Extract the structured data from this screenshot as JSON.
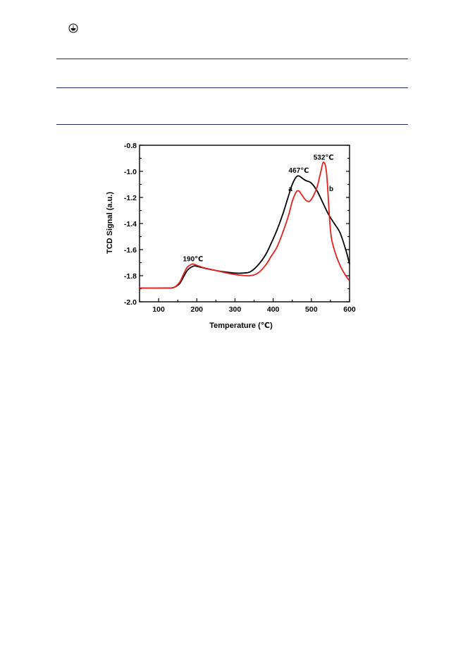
{
  "page": {
    "corner_icon": "circle-bowl-icon"
  },
  "chart_data": {
    "type": "line",
    "xlabel": "Temperature (℃)",
    "ylabel": "TCD Signal (a.u.)",
    "xlim": [
      50,
      600
    ],
    "ylim": [
      -2.0,
      -0.8
    ],
    "xticks": [
      100,
      200,
      300,
      400,
      500,
      600
    ],
    "yticks": [
      -2.0,
      -1.8,
      -1.6,
      -1.4,
      -1.2,
      -1.0,
      -0.8
    ],
    "grid": false,
    "legend": "none",
    "series": [
      {
        "name": "a",
        "color": "#000000",
        "x": [
          50,
          120,
          140,
          155,
          165,
          175,
          185,
          195,
          210,
          240,
          270,
          300,
          320,
          340,
          360,
          380,
          395,
          410,
          425,
          440,
          450,
          460,
          467,
          475,
          485,
          500,
          515,
          530,
          545,
          560,
          575,
          590,
          600
        ],
        "y": [
          -1.895,
          -1.895,
          -1.89,
          -1.86,
          -1.81,
          -1.76,
          -1.735,
          -1.725,
          -1.735,
          -1.755,
          -1.77,
          -1.78,
          -1.78,
          -1.77,
          -1.72,
          -1.64,
          -1.55,
          -1.45,
          -1.33,
          -1.19,
          -1.1,
          -1.045,
          -1.035,
          -1.05,
          -1.07,
          -1.09,
          -1.15,
          -1.24,
          -1.33,
          -1.4,
          -1.47,
          -1.6,
          -1.71
        ]
      },
      {
        "name": "b",
        "color": "#e8201c",
        "x": [
          50,
          120,
          140,
          155,
          165,
          175,
          185,
          190,
          200,
          220,
          250,
          280,
          310,
          340,
          360,
          380,
          395,
          410,
          425,
          440,
          450,
          460,
          467,
          475,
          485,
          495,
          505,
          515,
          525,
          532,
          540,
          550,
          560,
          575,
          590,
          600
        ],
        "y": [
          -1.895,
          -1.895,
          -1.89,
          -1.85,
          -1.79,
          -1.735,
          -1.715,
          -1.71,
          -1.72,
          -1.74,
          -1.76,
          -1.78,
          -1.795,
          -1.8,
          -1.78,
          -1.72,
          -1.65,
          -1.58,
          -1.47,
          -1.34,
          -1.23,
          -1.16,
          -1.15,
          -1.18,
          -1.22,
          -1.23,
          -1.19,
          -1.12,
          -1.0,
          -0.93,
          -1.02,
          -1.45,
          -1.6,
          -1.72,
          -1.8,
          -1.84
        ]
      }
    ],
    "annotations": [
      {
        "text": "190℃",
        "x": 190,
        "y": -1.69
      },
      {
        "text": "467℃",
        "x": 467,
        "y": -1.01
      },
      {
        "text": "532℃",
        "x": 532,
        "y": -0.91
      },
      {
        "text": "a",
        "x": 445,
        "y": -1.15
      },
      {
        "text": "b",
        "x": 552,
        "y": -1.15
      }
    ]
  }
}
